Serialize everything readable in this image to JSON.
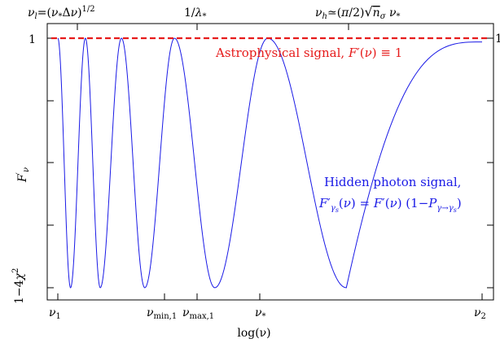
{
  "chart_data": {
    "type": "line",
    "xlabel": "log(ν)",
    "ylabel": "F′_ν",
    "x_scale": "log",
    "y_ticks": [
      {
        "value": 1,
        "label": "1"
      },
      {
        "value": 0.0,
        "label": "1−4χ²"
      }
    ],
    "right_tick": "1",
    "x_ticks_bottom": [
      {
        "text": "ν",
        "sub": "1"
      },
      {
        "text": "ν",
        "sub": "min,1"
      },
      {
        "text": "ν",
        "sub": "max,1"
      },
      {
        "text": "ν",
        "sub": "*"
      },
      {
        "text": "ν",
        "sub": "2"
      }
    ],
    "x_ticks_top": [
      {
        "text": "ν_l=(ν_*Δν)^1/2"
      },
      {
        "text": "1/λ_*"
      },
      {
        "text": "ν_h≃(π/2)√n_σ ν_*"
      }
    ],
    "series": [
      {
        "name": "Astrophysical signal, F′(ν) ≡ 1",
        "color": "#e61a1a",
        "style": "dashed",
        "values": [
          [
            0,
            1
          ],
          [
            1,
            1
          ]
        ]
      },
      {
        "name": "Hidden photon signal, F′_γs(ν) = F′(ν) (1−P_γ→γs)",
        "color": "#1a1ae6",
        "style": "solid",
        "description_points": [
          [
            0.0,
            1.0
          ],
          [
            0.03,
            0.0
          ],
          [
            0.065,
            1.0
          ],
          [
            0.1,
            0.0
          ],
          [
            0.15,
            1.0
          ],
          [
            0.205,
            0.0
          ],
          [
            0.275,
            1.0
          ],
          [
            0.37,
            0.0
          ],
          [
            0.495,
            1.0
          ],
          [
            0.68,
            0.0
          ],
          [
            1.0,
            0.985
          ]
        ]
      }
    ],
    "annotations": {
      "astro": "Astrophysical signal, F′(ν) ≡ 1",
      "hidden_title": "Hidden photon signal,",
      "hidden_formula": "F′_γs(ν) = F′(ν) (1−P_γ→γs)"
    },
    "grid": false
  }
}
